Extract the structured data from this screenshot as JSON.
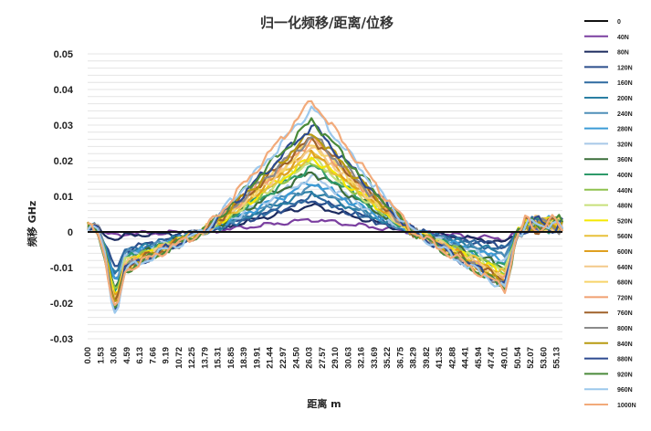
{
  "chart_data": {
    "type": "line",
    "title": "归一化频移/距离/位移",
    "xlabel": "距离 m",
    "ylabel": "频移 GHz",
    "ylim": [
      -0.03,
      0.05
    ],
    "yticks": [
      0.05,
      0.04,
      0.03,
      0.02,
      0.01,
      0,
      -0.01,
      -0.02,
      -0.03
    ],
    "ytick_labels": [
      "0.05",
      "0.04",
      "0.03",
      "0.02",
      "0.01",
      "0",
      "-0.01",
      "-0.02",
      "-0.03"
    ],
    "x_tick_labels": [
      "0.00",
      "1.53",
      "3.06",
      "4.59",
      "6.13",
      "7.66",
      "9.19",
      "10.72",
      "12.25",
      "13.79",
      "15.31",
      "16.85",
      "18.39",
      "19.91",
      "21.44",
      "22.97",
      "24.50",
      "26.03",
      "27.57",
      "29.10",
      "30.63",
      "32.16",
      "33.69",
      "35.22",
      "36.75",
      "38.29",
      "39.82",
      "41.35",
      "42.88",
      "44.41",
      "45.94",
      "47.47",
      "49.01",
      "50.54",
      "52.07",
      "53.60",
      "55.13"
    ],
    "x_range": [
      0,
      56
    ],
    "grid": "horizontal",
    "legend_position": "right",
    "profile_shape": {
      "peak_x": 26.5,
      "rise_start": 13.5,
      "fall_end": 38.5,
      "dip_center_left": 3.3,
      "dip_center_right": 49.3
    },
    "series": [
      {
        "name": "0",
        "color": "#111111",
        "peak": 0.0,
        "dip_left": 0.0,
        "dip_right": 0.0
      },
      {
        "name": "40N",
        "color": "#7b3fa0",
        "peak": 0.0035,
        "dip_left": -0.001,
        "dip_right": -0.002
      },
      {
        "name": "80N",
        "color": "#1b2a5e",
        "peak": 0.0075,
        "dip_left": -0.002,
        "dip_right": -0.003
      },
      {
        "name": "120N",
        "color": "#2b4e8c",
        "peak": 0.009,
        "dip_left": -0.01,
        "dip_right": -0.004
      },
      {
        "name": "160N",
        "color": "#2f6aa0",
        "peak": 0.01,
        "dip_left": -0.011,
        "dip_right": -0.005
      },
      {
        "name": "200N",
        "color": "#2a7fa3",
        "peak": 0.0115,
        "dip_left": -0.012,
        "dip_right": -0.006
      },
      {
        "name": "240N",
        "color": "#4f8fb8",
        "peak": 0.013,
        "dip_left": -0.013,
        "dip_right": -0.007
      },
      {
        "name": "280N",
        "color": "#3b9bd6",
        "peak": 0.014,
        "dip_left": -0.014,
        "dip_right": -0.008
      },
      {
        "name": "320N",
        "color": "#a8c8e8",
        "peak": 0.0155,
        "dip_left": -0.015,
        "dip_right": -0.009
      },
      {
        "name": "360N",
        "color": "#3c6e3a",
        "peak": 0.017,
        "dip_left": -0.016,
        "dip_right": -0.01
      },
      {
        "name": "400N",
        "color": "#2e9a6a",
        "peak": 0.0185,
        "dip_left": -0.016,
        "dip_right": -0.01
      },
      {
        "name": "440N",
        "color": "#8fc24e",
        "peak": 0.02,
        "dip_left": -0.017,
        "dip_right": -0.011
      },
      {
        "name": "480N",
        "color": "#c8e07a",
        "peak": 0.0205,
        "dip_left": -0.017,
        "dip_right": -0.011
      },
      {
        "name": "520N",
        "color": "#f5e800",
        "peak": 0.021,
        "dip_left": -0.018,
        "dip_right": -0.012
      },
      {
        "name": "560N",
        "color": "#e8c13a",
        "peak": 0.022,
        "dip_left": -0.018,
        "dip_right": -0.012
      },
      {
        "name": "600N",
        "color": "#e0a020",
        "peak": 0.023,
        "dip_left": -0.019,
        "dip_right": -0.013
      },
      {
        "name": "640N",
        "color": "#f3c98a",
        "peak": 0.024,
        "dip_left": -0.019,
        "dip_right": -0.013
      },
      {
        "name": "680N",
        "color": "#f7d46a",
        "peak": 0.025,
        "dip_left": -0.02,
        "dip_right": -0.014
      },
      {
        "name": "720N",
        "color": "#f0a070",
        "peak": 0.026,
        "dip_left": -0.02,
        "dip_right": -0.014
      },
      {
        "name": "760N",
        "color": "#a0622a",
        "peak": 0.0265,
        "dip_left": -0.02,
        "dip_right": -0.014
      },
      {
        "name": "800N",
        "color": "#8a8a8a",
        "peak": 0.027,
        "dip_left": -0.021,
        "dip_right": -0.015
      },
      {
        "name": "840N",
        "color": "#b89a10",
        "peak": 0.028,
        "dip_left": -0.021,
        "dip_right": -0.015
      },
      {
        "name": "880N",
        "color": "#2c4a90",
        "peak": 0.03,
        "dip_left": -0.021,
        "dip_right": -0.015
      },
      {
        "name": "920N",
        "color": "#4a8a3a",
        "peak": 0.0315,
        "dip_left": -0.022,
        "dip_right": -0.016
      },
      {
        "name": "960N",
        "color": "#9cc8ec",
        "peak": 0.035,
        "dip_left": -0.022,
        "dip_right": -0.016
      },
      {
        "name": "1000N",
        "color": "#f2aa7a",
        "peak": 0.037,
        "dip_left": -0.022,
        "dip_right": -0.016
      }
    ]
  }
}
